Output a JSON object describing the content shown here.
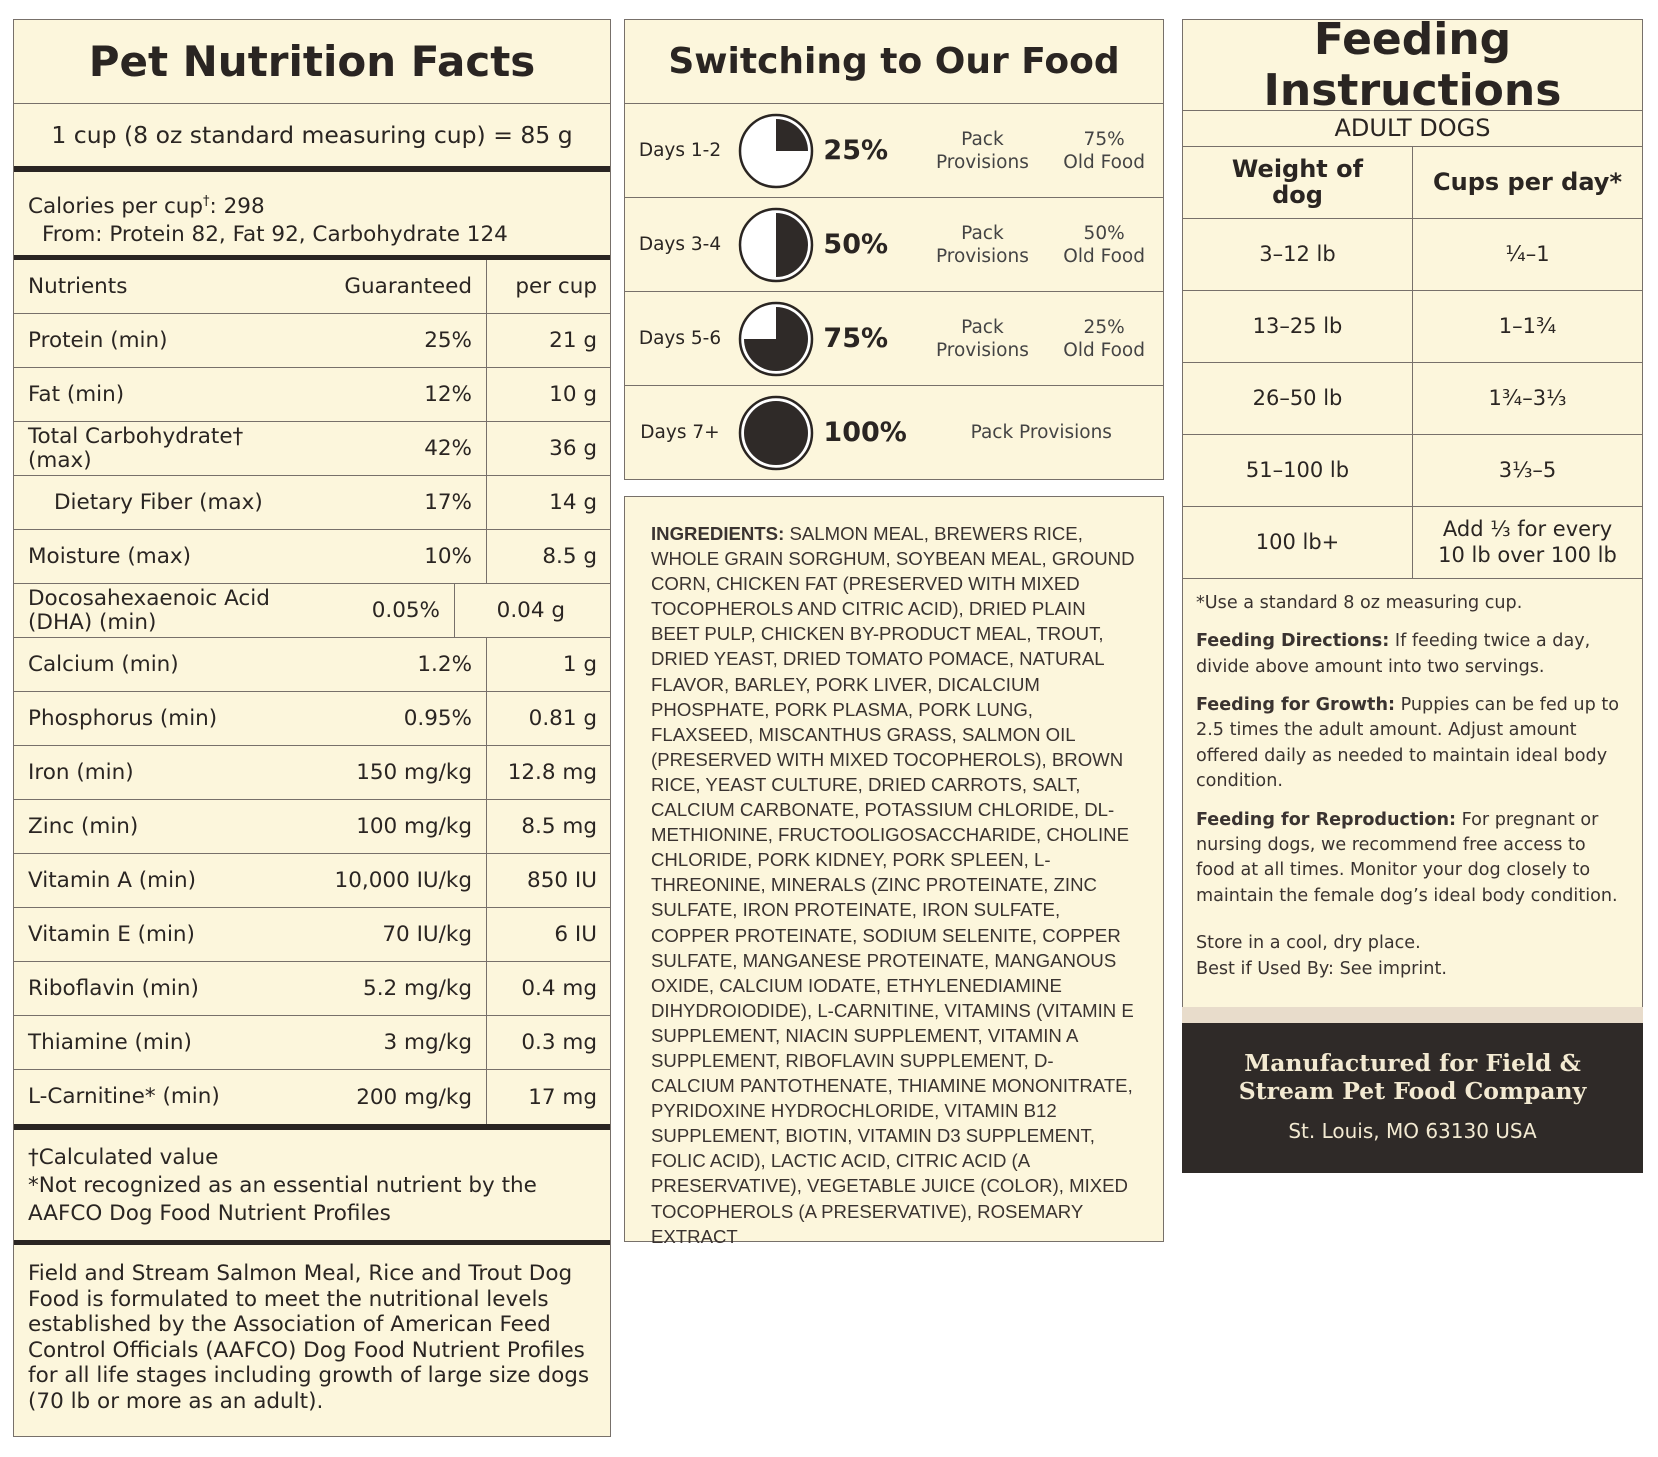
{
  "nutrition": {
    "title": "Pet Nutrition Facts",
    "serving": "1 cup (8 oz standard measuring cup) = 85 g",
    "calories": {
      "label": "Calories per cup",
      "mark": "†",
      "value": ": 298"
    },
    "calories_from": "From: Protein 82, Fat 92, Carbohydrate 124",
    "header": [
      "Nutrients",
      "Guaranteed",
      "per cup"
    ],
    "rows": [
      {
        "name": "Protein (min)",
        "guaranteed": "25%",
        "per_cup": "21 g"
      },
      {
        "name": "Fat (min)",
        "guaranteed": "12%",
        "per_cup": "10 g"
      },
      {
        "name": "Total Carbohydrate† (max)",
        "guaranteed": "42%",
        "per_cup": "36 g"
      },
      {
        "name": "Dietary Fiber (max)",
        "guaranteed": "17%",
        "per_cup": "14 g",
        "indented": true
      },
      {
        "name": "Moisture (max)",
        "guaranteed": "10%",
        "per_cup": "8.5 g"
      },
      {
        "name": "Docosahexaenoic Acid (DHA) (min)",
        "guaranteed": "0.05%",
        "per_cup": "0.04 g"
      },
      {
        "name": "Calcium (min)",
        "guaranteed": "1.2%",
        "per_cup": "1 g"
      },
      {
        "name": "Phosphorus (min)",
        "guaranteed": "0.95%",
        "per_cup": "0.81 g"
      },
      {
        "name": "Iron (min)",
        "guaranteed": "150 mg/kg",
        "per_cup": "12.8 mg"
      },
      {
        "name": "Zinc (min)",
        "guaranteed": "100 mg/kg",
        "per_cup": "8.5 mg"
      },
      {
        "name": "Vitamin A (min)",
        "guaranteed": "10,000 IU/kg",
        "per_cup": "850 IU"
      },
      {
        "name": "Vitamin E (min)",
        "guaranteed": "70 IU/kg",
        "per_cup": "6 IU"
      },
      {
        "name": "Riboflavin (min)",
        "guaranteed": "5.2 mg/kg",
        "per_cup": "0.4 mg"
      },
      {
        "name": "Thiamine (min)",
        "guaranteed": "3 mg/kg",
        "per_cup": "0.3 mg"
      },
      {
        "name": "L-Carnitine* (min)",
        "guaranteed": "200 mg/kg",
        "per_cup": "17 mg"
      }
    ],
    "footnotes": [
      "†Calculated value",
      "*Not recognized as an essential nutrient by the AAFCO Dog Food Nutrient Profiles"
    ],
    "statement": "Field and Stream Salmon Meal, Rice and Trout Dog Food is formulated to meet the nutritional levels established by the Association of American Feed Control Officials (AAFCO) Dog Food Nutrient Profiles for all life stages including growth of large size dogs (70 lb or more as an adult)."
  },
  "switching": {
    "title": "Switching to Our Food",
    "rows": [
      {
        "days": "Days 1-2",
        "percent": 25,
        "percent_label": "25%",
        "new_food": [
          "Pack",
          "Provisions"
        ],
        "old_food": [
          "75%",
          "Old Food"
        ]
      },
      {
        "days": "Days 3-4",
        "percent": 50,
        "percent_label": "50%",
        "new_food": [
          "Pack",
          "Provisions"
        ],
        "old_food": [
          "50%",
          "Old Food"
        ]
      },
      {
        "days": "Days 5-6",
        "percent": 75,
        "percent_label": "75%",
        "new_food": [
          "Pack",
          "Provisions"
        ],
        "old_food": [
          "25%",
          "Old Food"
        ]
      },
      {
        "days": "Days 7+",
        "percent": 100,
        "percent_label": "100%",
        "new_food": [
          "Pack Provisions"
        ]
      }
    ]
  },
  "ingredients": {
    "label": "INGREDIENTS:",
    "text": "SALMON MEAL, BREWERS RICE, WHOLE GRAIN SORGHUM, SOYBEAN MEAL, GROUND CORN, CHICKEN FAT (PRESERVED WITH MIXED TOCOPHEROLS AND CITRIC ACID), DRIED PLAIN BEET PULP, CHICKEN BY-PRODUCT MEAL, TROUT, DRIED YEAST, DRIED TOMATO POMACE, NATURAL FLAVOR, BARLEY, PORK LIVER, DICALCIUM PHOSPHATE, PORK PLASMA, PORK LUNG, FLAXSEED, MISCANTHUS GRASS, SALMON OIL (PRESERVED WITH MIXED TOCOPHEROLS), BROWN RICE, YEAST CULTURE, DRIED CARROTS, SALT, CALCIUM CARBONATE, POTASSIUM CHLORIDE, DL-METHIONINE, FRUCTOOLIGOSACCHARIDE, CHOLINE CHLORIDE, PORK KIDNEY, PORK SPLEEN, L-THREONINE, MINERALS (ZINC PROTEINATE, ZINC SULFATE, IRON PROTEINATE, IRON SULFATE, COPPER PROTEINATE, SODIUM SELENITE, COPPER SULFATE, MANGANESE PROTEINATE, MANGANOUS OXIDE, CALCIUM IODATE, ETHYLENEDIAMINE DIHYDROIODIDE), L-CARNITINE, VITAMINS (VITAMIN E SUPPLEMENT, NIACIN SUPPLEMENT, VITAMIN A SUPPLEMENT, RIBOFLAVIN SUPPLEMENT, D-CALCIUM PANTOTHENATE, THIAMINE MONONITRATE, PYRIDOXINE HYDROCHLORIDE, VITAMIN B12 SUPPLEMENT, BIOTIN, VITAMIN D3 SUPPLEMENT, FOLIC ACID), LACTIC ACID, CITRIC ACID (A PRESERVATIVE), VEGETABLE JUICE (COLOR), MIXED TOCOPHEROLS (A PRESERVATIVE), ROSEMARY EXTRACT"
  },
  "feeding": {
    "title": "Feeding Instructions",
    "subtitle": "ADULT DOGS",
    "header": [
      "Weight of dog",
      "Cups per day*"
    ],
    "rows": [
      [
        "3–12 lb",
        "¼–1"
      ],
      [
        "13–25 lb",
        "1–1¾"
      ],
      [
        "26–50 lb",
        "1¾–3⅓"
      ],
      [
        "51–100 lb",
        "3⅓–5"
      ],
      [
        "100 lb+",
        "Add ⅓ for every 10 lb over 100 lb"
      ]
    ],
    "note": "*Use a standard 8 oz measuring cup.",
    "directions": [
      {
        "label": "Feeding Directions:",
        "text": " If feeding twice a day, divide above amount into two servings."
      },
      {
        "label": "Feeding for Growth:",
        "text": " Puppies can be fed up to 2.5 times the adult amount. Adjust amount offered daily as needed to maintain ideal body condition."
      },
      {
        "label": "Feeding for Reproduction:",
        "text": "  For pregnant or nursing  dogs, we recommend free access to food at all times. Monitor your dog closely to maintain the female dog’s ideal body condition."
      }
    ],
    "storage": [
      "Store in a cool, dry place.",
      "Best if Used By: See imprint."
    ]
  },
  "footer": {
    "manufacturer": "Manufactured for Field & Stream Pet Food Company",
    "address": "St. Louis, MO 63130 USA"
  }
}
